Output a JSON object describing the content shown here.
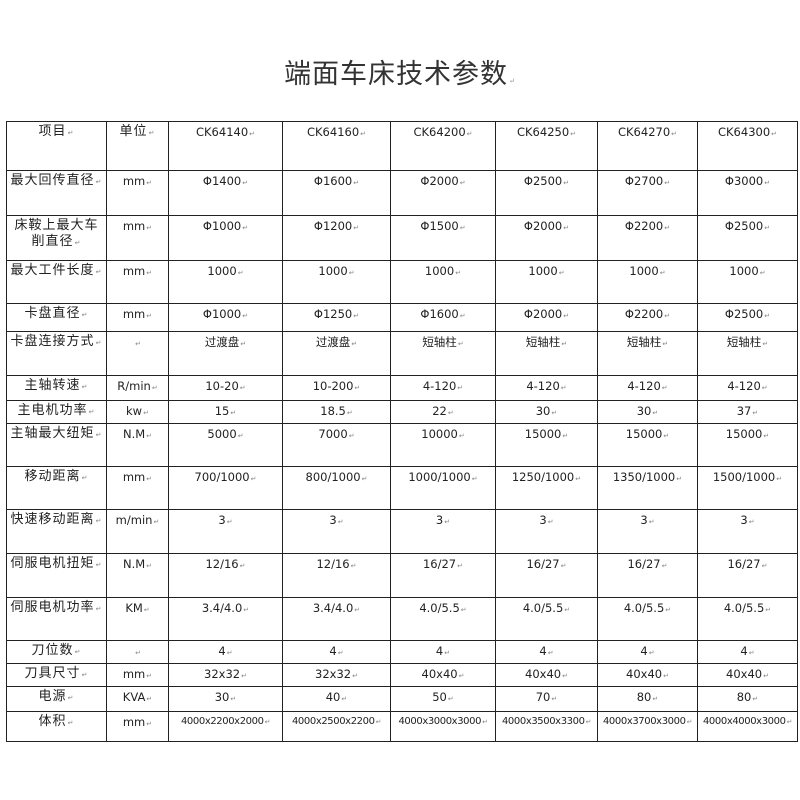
{
  "title": "端面车床技术参数",
  "headers": [
    "项目",
    "单位",
    "CK64140",
    "CK64160",
    "CK64200",
    "CK64250",
    "CK64270",
    "CK64300"
  ],
  "rows": [
    {
      "item": "最大回传直径",
      "unit": "mm",
      "values": [
        "Φ1400",
        "Φ1600",
        "Φ2000",
        "Φ2500",
        "Φ2700",
        "Φ3000"
      ]
    },
    {
      "item": "床鞍上最大车削直径",
      "unit": "mm",
      "values": [
        "Φ1000",
        "Φ1200",
        "Φ1500",
        "Φ2000",
        "Φ2200",
        "Φ2500"
      ]
    },
    {
      "item": "最大工件长度",
      "unit": "mm",
      "values": [
        "1000",
        "1000",
        "1000",
        "1000",
        "1000",
        "1000"
      ]
    },
    {
      "item": "卡盘直径",
      "unit": "mm",
      "values": [
        "Φ1000",
        "Φ1250",
        "Φ1600",
        "Φ2000",
        "Φ2200",
        "Φ2500"
      ]
    },
    {
      "item": "卡盘连接方式",
      "unit": "",
      "values": [
        "过渡盘",
        "过渡盘",
        "短轴柱",
        "短轴柱",
        "短轴柱",
        "短轴柱"
      ]
    },
    {
      "item": "主轴转速",
      "unit": "R/min",
      "values": [
        "10-20",
        "10-200",
        "4-120",
        "4-120",
        "4-120",
        "4-120"
      ]
    },
    {
      "item": "主电机功率",
      "unit": "kw",
      "values": [
        "15",
        "18.5",
        "22",
        "30",
        "30",
        "37"
      ]
    },
    {
      "item": "主轴最大纽矩",
      "unit": "N.M",
      "values": [
        "5000",
        "7000",
        "10000",
        "15000",
        "15000",
        "15000"
      ]
    },
    {
      "item": "移动距离",
      "unit": "mm",
      "values": [
        "700/1000",
        "800/1000",
        "1000/1000",
        "1250/1000",
        "1350/1000",
        "1500/1000"
      ]
    },
    {
      "item": "快速移动距离",
      "unit": "m/min",
      "values": [
        "3",
        "3",
        "3",
        "3",
        "3",
        "3"
      ]
    },
    {
      "item": "伺服电机扭矩",
      "unit": "N.M",
      "values": [
        "12/16",
        "12/16",
        "16/27",
        "16/27",
        "16/27",
        "16/27"
      ]
    },
    {
      "item": "伺服电机功率",
      "unit": "KM",
      "values": [
        "3.4/4.0",
        "3.4/4.0",
        "4.0/5.5",
        "4.0/5.5",
        "4.0/5.5",
        "4.0/5.5"
      ]
    },
    {
      "item": "刀位数",
      "unit": "",
      "values": [
        "4",
        "4",
        "4",
        "4",
        "4",
        "4"
      ]
    },
    {
      "item": "刀具尺寸",
      "unit": "mm",
      "values": [
        "32x32",
        "32x32",
        "40x40",
        "40x40",
        "40x40",
        "40x40"
      ]
    },
    {
      "item": "电源",
      "unit": "KVA",
      "values": [
        "30",
        "40",
        "50",
        "70",
        "80",
        "80"
      ]
    },
    {
      "item": "体积",
      "unit": "mm",
      "values": [
        "4000x2200x2000",
        "4000x2500x2200",
        "4000x3000x3000",
        "4000x3500x3300",
        "4000x3700x3000",
        "4000x4000x3000"
      ]
    }
  ]
}
